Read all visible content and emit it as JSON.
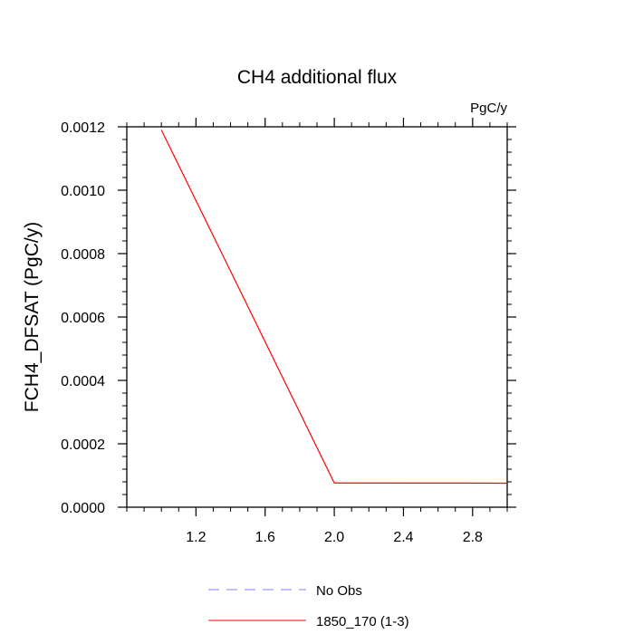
{
  "chart_data": {
    "type": "line",
    "title": "CH4 additional flux",
    "units_label": "PgC/y",
    "ylabel": "FCH4_DFSAT  (PgC/y)",
    "xlabel": "",
    "xlim": [
      0.8,
      3.0
    ],
    "ylim": [
      0.0,
      0.0012
    ],
    "xticks": [
      1.2,
      1.6,
      2.0,
      2.4,
      2.8
    ],
    "xtick_labels": [
      "1.2",
      "1.6",
      "2.0",
      "2.4",
      "2.8"
    ],
    "yticks": [
      0.0,
      0.0002,
      0.0004,
      0.0006,
      0.0008,
      0.001,
      0.0012
    ],
    "ytick_labels": [
      "0.0000",
      "0.0002",
      "0.0004",
      "0.0006",
      "0.0008",
      "0.0010",
      "0.0012"
    ],
    "grid": false,
    "legend_position": "bottom",
    "series": [
      {
        "name": "No Obs",
        "color": "#8080ff",
        "style": "dashed",
        "x": [],
        "y": []
      },
      {
        "name": "1850_170 (1-3)",
        "color": "#ff0000",
        "style": "solid",
        "x": [
          1.0,
          2.0,
          3.0
        ],
        "y": [
          0.00119,
          7.65e-05,
          7.58e-05
        ]
      }
    ]
  }
}
